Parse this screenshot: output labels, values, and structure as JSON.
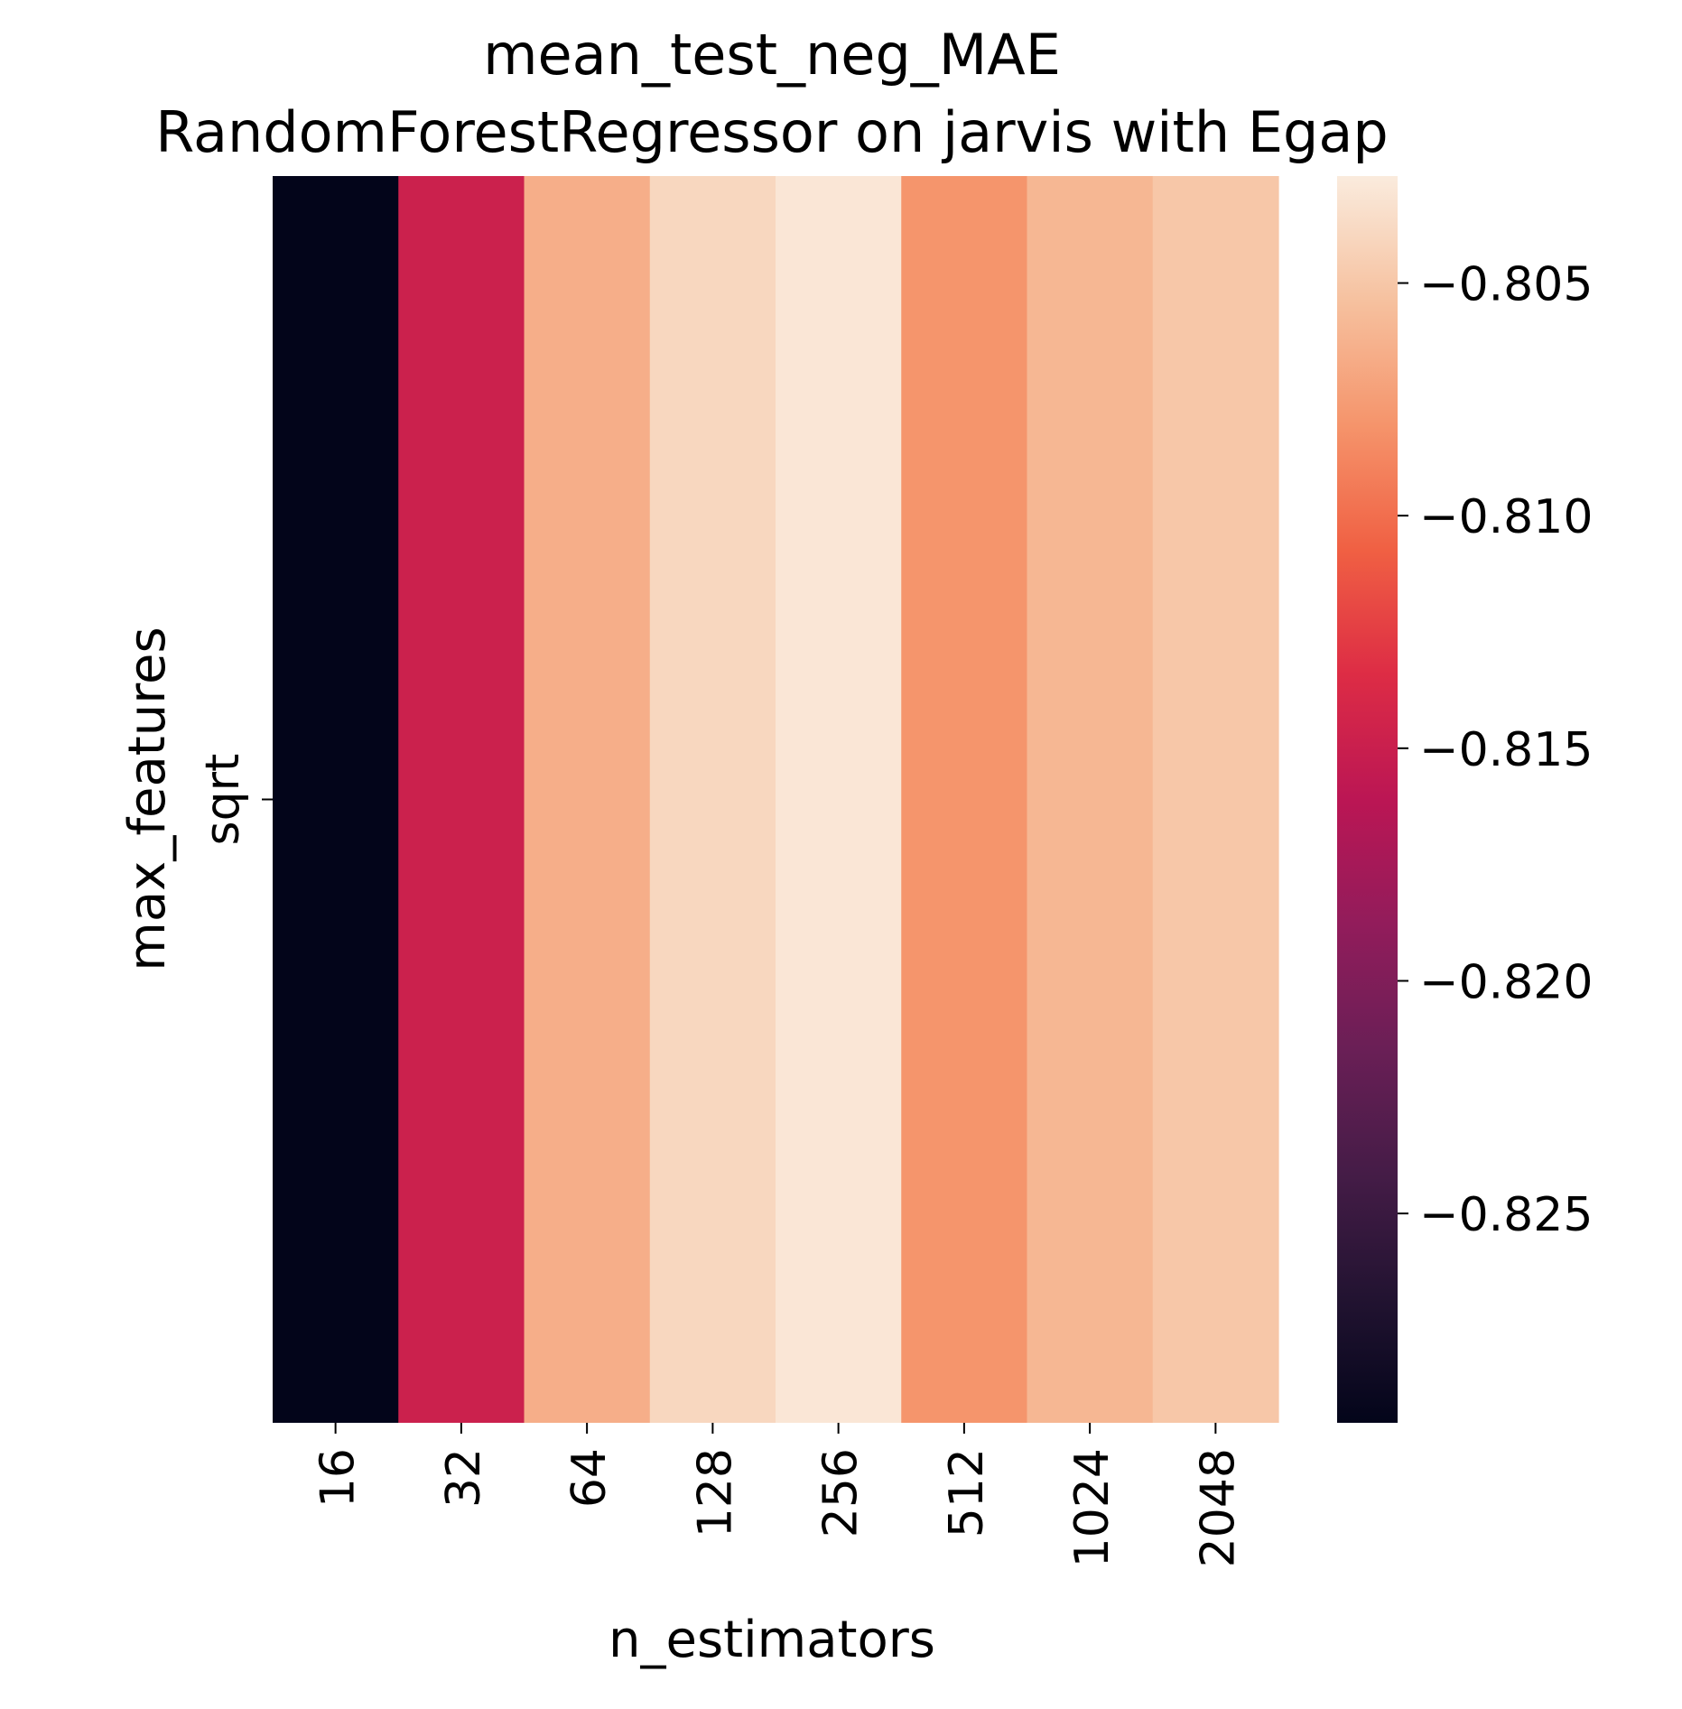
{
  "chart_data": {
    "type": "heatmap",
    "title": "mean_test_neg_MAE",
    "subtitle": "RandomForestRegressor on jarvis with Egap",
    "xlabel": "n_estimators",
    "ylabel": "max_features",
    "x_categories": [
      "16",
      "32",
      "64",
      "128",
      "256",
      "512",
      "1024",
      "2048"
    ],
    "y_categories": [
      "sqrt"
    ],
    "values": [
      [
        -0.8295,
        -0.8148,
        -0.8065,
        -0.804,
        -0.803,
        -0.808,
        -0.806,
        -0.805
      ]
    ],
    "colorbar": {
      "ticks": [
        -0.805,
        -0.81,
        -0.815,
        -0.82,
        -0.825
      ],
      "tick_labels": [
        "−0.805",
        "−0.810",
        "−0.815",
        "−0.820",
        "−0.825"
      ],
      "range": [
        -0.8295,
        -0.8027
      ],
      "colormap": "rocket",
      "placement": "right"
    },
    "grid": false
  }
}
